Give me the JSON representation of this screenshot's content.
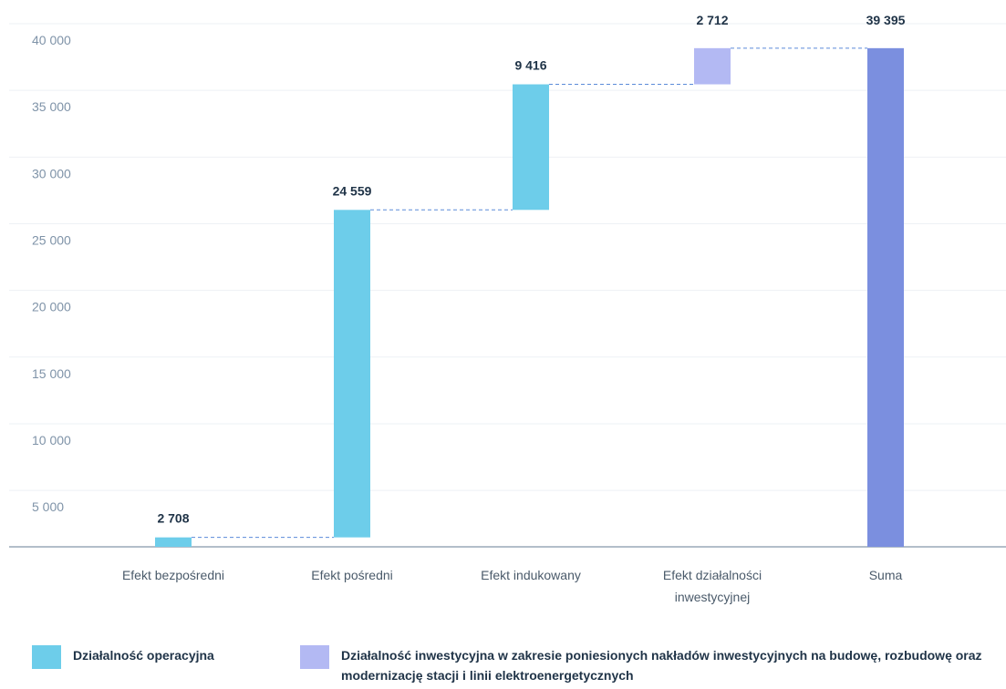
{
  "chart_data": {
    "type": "bar",
    "subtype": "waterfall",
    "categories": [
      "Efekt bezpośredni",
      "Efekt pośredni",
      "Efekt indukowany",
      "Efekt działalności inwestycyjnej",
      "Suma"
    ],
    "category_lines": [
      [
        "Efekt bezpośredni"
      ],
      [
        "Efekt pośredni"
      ],
      [
        "Efekt indukowany"
      ],
      [
        "Efekt działalności",
        "inwestycyjnej"
      ],
      [
        "Suma"
      ]
    ],
    "values": [
      2708,
      24559,
      9416,
      2712,
      39395
    ],
    "value_labels": [
      "2 708",
      "24 559",
      "9 416",
      "2 712",
      "39 395"
    ],
    "value_label_positions": [
      "top",
      "top",
      "top",
      "above-chart",
      "above-chart"
    ],
    "kinds": [
      "increment",
      "increment",
      "increment",
      "increment",
      "total"
    ],
    "bar_colors": [
      "#6dcdea",
      "#6dcdea",
      "#6dcdea",
      "#b3b9f3",
      "#7b8fdf"
    ],
    "ylim": [
      0,
      40000
    ],
    "yticks": [
      5000,
      10000,
      15000,
      20000,
      25000,
      30000,
      35000,
      40000
    ],
    "ytick_labels": [
      "5 000",
      "10 000",
      "15 000",
      "20 000",
      "25 000",
      "30 000",
      "35 000",
      "40 000"
    ],
    "grid": true,
    "connectors": "dashed",
    "legend_position": "bottom-left",
    "legend": [
      {
        "label": "Działalność operacyjna",
        "color": "#6dcdea"
      },
      {
        "label": "Działalność inwestycyjna w zakresie poniesionych nakładów inwestycyjnych na budowę, rozbudowę oraz modernizację stacji i linii elektroenergetycznych",
        "color": "#b3b9f3"
      }
    ],
    "colors": {
      "tick": "#7f93a8",
      "grid": "#eef1f5",
      "axis": "#9aa9b8",
      "label": "#1f3347",
      "category": "#4a5a6a",
      "connector": "#5b8bd9"
    }
  }
}
